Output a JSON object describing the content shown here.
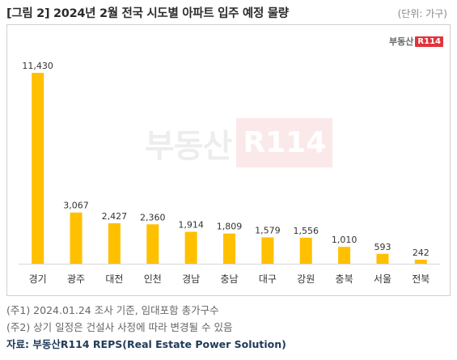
{
  "title": "[그림 2] 2024년 2월 전국 시도별 아파트 입주 예정 물량",
  "unit": "(단위: 가구)",
  "logo": {
    "text": "부동산",
    "badge": "R114"
  },
  "watermark": {
    "text": "부동산",
    "badge": "R114"
  },
  "colors": {
    "bar": "#FFC000",
    "axis": "#d9d9d9",
    "label": "#333333"
  },
  "chart_data": {
    "type": "bar",
    "categories": [
      "경기",
      "광주",
      "대전",
      "인천",
      "경남",
      "충남",
      "대구",
      "강원",
      "충북",
      "서울",
      "전북"
    ],
    "values": [
      11430,
      3067,
      2427,
      2360,
      1914,
      1809,
      1579,
      1556,
      1010,
      593,
      242
    ],
    "value_labels": [
      "11,430",
      "3,067",
      "2,427",
      "2,360",
      "1,914",
      "1,809",
      "1,579",
      "1,556",
      "1,010",
      "593",
      "242"
    ],
    "ylim": [
      0,
      12500
    ],
    "grid": false,
    "legend": "none"
  },
  "notes": [
    "(주1) 2024.01.24 조사 기준, 임대포함 총가구수",
    "(주2) 상기 일정은 건설사 사정에 따라 변경될 수 있음"
  ],
  "source": "자료: 부동산R114 REPS(Real Estate Power Solution)"
}
